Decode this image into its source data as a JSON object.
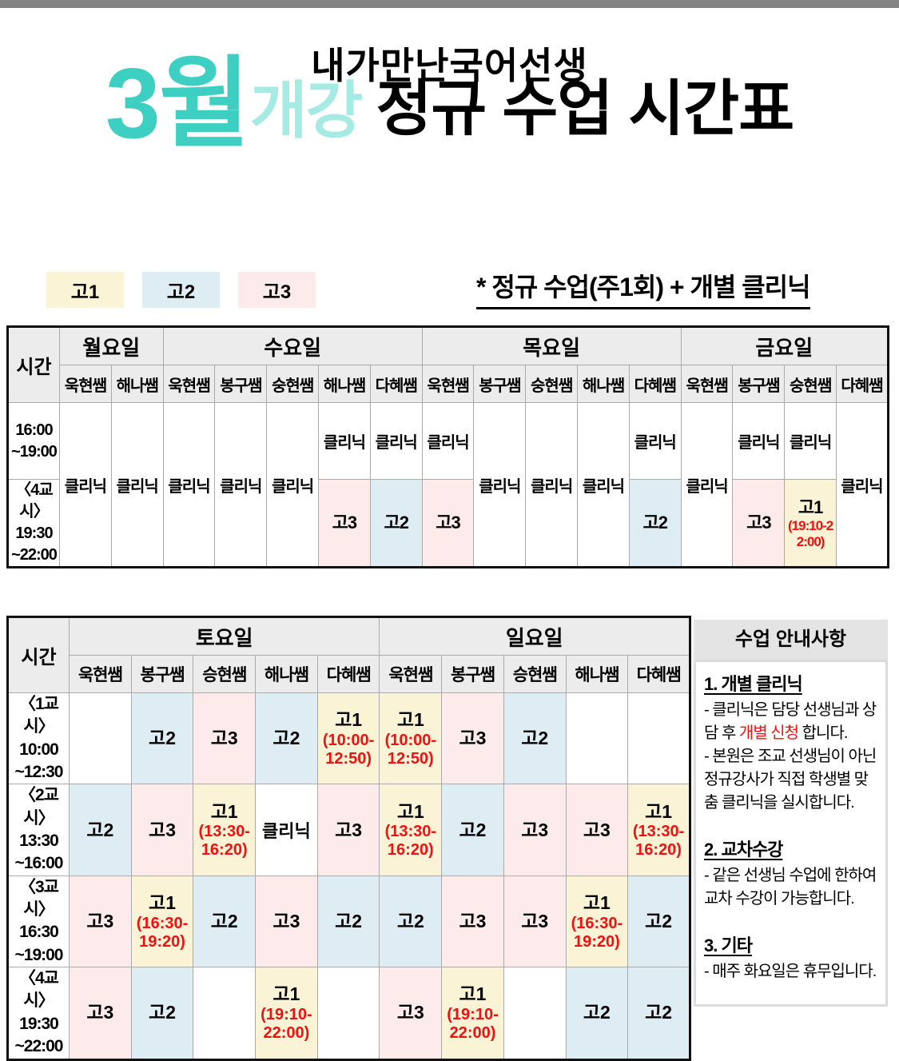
{
  "header": {
    "brand": "내가만난국어선생",
    "month": "3월",
    "open": "개강",
    "title": "정규 수업 시간표",
    "note": "* 정규 수업(주1회) + 개별 클리닉"
  },
  "legend": {
    "items": [
      {
        "label": "고1",
        "color": "#fbf3d5"
      },
      {
        "label": "고2",
        "color": "#deedf4"
      },
      {
        "label": "고3",
        "color": "#fcebea"
      }
    ]
  },
  "grade_colors": {
    "고1": "#fbf3d5",
    "고2": "#deedf4",
    "고3": "#fcebea"
  },
  "accent_colors": {
    "red": "#ee1111",
    "teal": "#3ecfc3",
    "teal_light": "#a6ebe3",
    "top_bar_gray": "#838383",
    "header_gray": "#ececec"
  },
  "weekday_table": {
    "time_label": "시간",
    "days": [
      {
        "label": "월요일",
        "teachers": [
          "욱현쌤",
          "해나쌤"
        ]
      },
      {
        "label": "수요일",
        "teachers": [
          "욱현쌤",
          "봉구쌤",
          "숭현쌤",
          "해나쌤",
          "다혜쌤"
        ]
      },
      {
        "label": "목요일",
        "teachers": [
          "욱현쌤",
          "봉구쌤",
          "숭현쌤",
          "해나쌤",
          "다혜쌤"
        ]
      },
      {
        "label": "금요일",
        "teachers": [
          "욱현쌤",
          "봉구쌤",
          "숭현쌤",
          "다혜쌤"
        ]
      }
    ],
    "time_rows": [
      "16:00\n~19:00",
      "〈4교시〉\n19:30\n~22:00"
    ],
    "cells": [
      {
        "type": "span",
        "text": "클리닉"
      },
      {
        "type": "span",
        "text": "클리닉"
      },
      {
        "type": "span",
        "text": "클리닉"
      },
      {
        "type": "span",
        "text": "클리닉"
      },
      {
        "type": "span",
        "text": "클리닉"
      },
      {
        "type": "split",
        "top": "클리닉",
        "grade": "고3"
      },
      {
        "type": "split",
        "top": "클리닉",
        "grade": "고2"
      },
      {
        "type": "split",
        "top": "클리닉",
        "grade": "고3"
      },
      {
        "type": "span",
        "text": "클리닉"
      },
      {
        "type": "span",
        "text": "클리닉"
      },
      {
        "type": "span",
        "text": "클리닉"
      },
      {
        "type": "split",
        "top": "클리닉",
        "grade": "고2"
      },
      {
        "type": "span",
        "text": "클리닉"
      },
      {
        "type": "split",
        "top": "클리닉",
        "grade": "고3"
      },
      {
        "type": "split",
        "top": "클리닉",
        "grade": "고1",
        "time": "(19:10-22:00)"
      },
      {
        "type": "span",
        "text": "클리닉"
      }
    ]
  },
  "weekend_table": {
    "time_label": "시간",
    "days": [
      {
        "label": "토요일",
        "teachers": [
          "욱현쌤",
          "봉구쌤",
          "승현쌤",
          "해나쌤",
          "다혜쌤"
        ]
      },
      {
        "label": "일요일",
        "teachers": [
          "욱현쌤",
          "봉구쌤",
          "승현쌤",
          "해나쌤",
          "다혜쌤"
        ]
      }
    ],
    "time_rows": [
      "〈1교시〉\n10:00\n~12:30",
      "〈2교시〉\n13:30\n~16:00",
      "〈3교시〉\n16:30\n~19:00",
      "〈4교시〉\n19:30\n~22:00"
    ],
    "rows": [
      [
        null,
        {
          "grade": "고2"
        },
        {
          "grade": "고3"
        },
        {
          "grade": "고2"
        },
        {
          "grade": "고1",
          "time": "(10:00-12:50)"
        },
        {
          "grade": "고1",
          "time": "(10:00-12:50)"
        },
        {
          "grade": "고3"
        },
        {
          "grade": "고2"
        },
        null,
        null
      ],
      [
        {
          "grade": "고2"
        },
        {
          "grade": "고3"
        },
        {
          "grade": "고1",
          "time": "(13:30-16:20)"
        },
        {
          "text": "클리닉"
        },
        {
          "grade": "고3"
        },
        {
          "grade": "고1",
          "time": "(13:30-16:20)"
        },
        {
          "grade": "고2"
        },
        {
          "grade": "고3"
        },
        {
          "grade": "고3"
        },
        {
          "grade": "고1",
          "time": "(13:30-16:20)"
        }
      ],
      [
        {
          "grade": "고3"
        },
        {
          "grade": "고1",
          "time": "(16:30-19:20)"
        },
        {
          "grade": "고2"
        },
        {
          "grade": "고3"
        },
        {
          "grade": "고2"
        },
        {
          "grade": "고2"
        },
        {
          "grade": "고3"
        },
        {
          "grade": "고3"
        },
        {
          "grade": "고1",
          "time": "(16:30-19:20)"
        },
        {
          "grade": "고2"
        }
      ],
      [
        {
          "grade": "고3"
        },
        {
          "grade": "고2"
        },
        null,
        {
          "grade": "고1",
          "time": "(19:10-22:00)"
        },
        null,
        {
          "grade": "고3"
        },
        {
          "grade": "고1",
          "time": "(19:10-22:00)"
        },
        null,
        {
          "grade": "고2"
        },
        {
          "grade": "고2"
        }
      ]
    ]
  },
  "info_panel": {
    "title": "수업 안내사항",
    "sections": [
      {
        "heading": "1. 개별 클리닉",
        "lines": [
          [
            {
              "t": "- 클리닉은 담당 선생님과 상담 후 "
            },
            {
              "t": "개별 신청",
              "red": true
            },
            {
              "t": " 합니다."
            }
          ],
          [
            {
              "t": "- 본원은 조교 선생님이 아닌 정규강사가 직접 학생별 맞춤 클리닉을 실시합니다."
            }
          ]
        ]
      },
      {
        "heading": "2. 교차수강",
        "lines": [
          [
            {
              "t": "- 같은 선생님 수업에 한하여 교차 수강이 가능합니다."
            }
          ]
        ]
      },
      {
        "heading": "3. 기타",
        "lines": [
          [
            {
              "t": "- 매주 화요일은 휴무입니다."
            }
          ]
        ]
      }
    ]
  }
}
